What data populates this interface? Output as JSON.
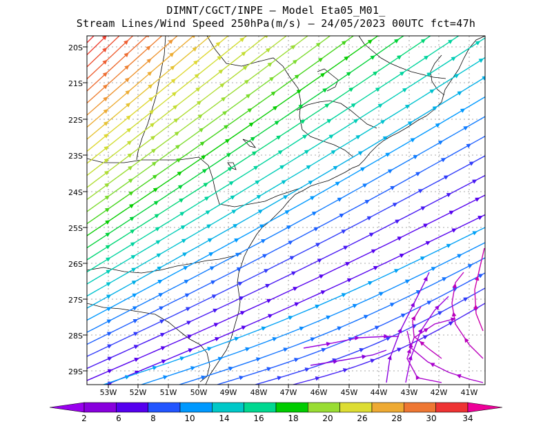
{
  "title_line1": "DIMNT/CGCT/INPE —  Model Eta05_M01_",
  "title_line2": "Stream Lines/Wind Speed 250hPa(m/s) —  24/05/2023 00UTC fct=47h",
  "lat_labels": [
    "20S",
    "21S",
    "22S",
    "23S",
    "24S",
    "25S",
    "26S",
    "27S",
    "28S",
    "29S"
  ],
  "lon_labels": [
    "53W",
    "52W",
    "51W",
    "50W",
    "49W",
    "48W",
    "47W",
    "46W",
    "45W",
    "44W",
    "43W",
    "42W",
    "41W"
  ],
  "colorbar": {
    "labels": [
      "2",
      "6",
      "8",
      "10",
      "14",
      "16",
      "18",
      "20",
      "26",
      "28",
      "30",
      "34"
    ],
    "colors": [
      "#8800dd",
      "#5500ee",
      "#2255ff",
      "#0099ff",
      "#00c8c8",
      "#00d890",
      "#00cc00",
      "#99dd33",
      "#dddd33",
      "#eeaa33",
      "#ee7733",
      "#ee3333"
    ],
    "end_low": "#9900ee",
    "end_high": "#ee0099"
  }
}
